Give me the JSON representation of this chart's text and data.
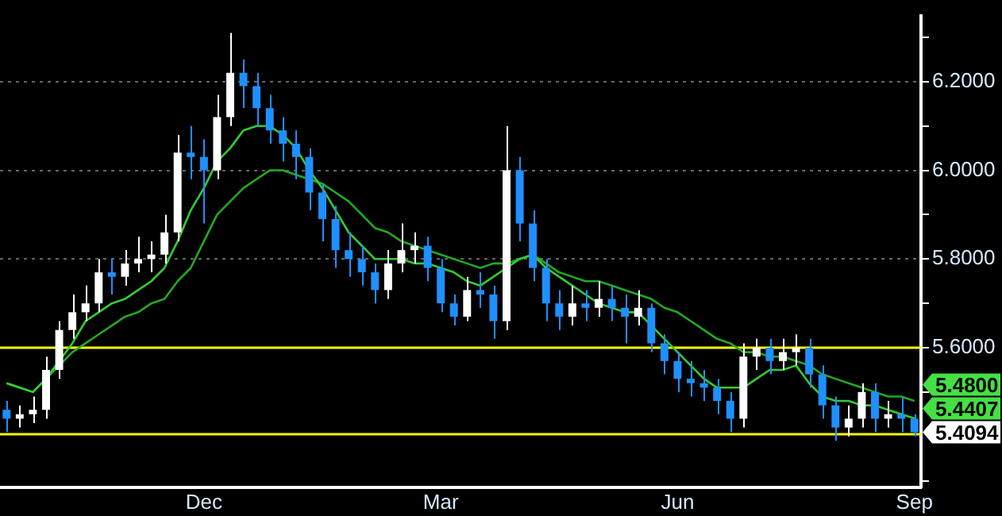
{
  "chart_data": {
    "type": "candlestick",
    "categories": [
      null,
      null,
      null,
      null,
      null,
      null,
      null,
      null,
      null,
      null,
      null,
      null,
      null,
      null,
      null,
      "Dec",
      null,
      null,
      null,
      null,
      null,
      null,
      null,
      null,
      null,
      null,
      null,
      null,
      null,
      null,
      null,
      null,
      null,
      "Mar",
      null,
      null,
      null,
      null,
      null,
      null,
      null,
      null,
      null,
      null,
      null,
      null,
      null,
      null,
      null,
      null,
      null,
      "Jun",
      null,
      null,
      null,
      null,
      null,
      null,
      null,
      null,
      null,
      null,
      null,
      null,
      null,
      null,
      null,
      null,
      null,
      "Sep"
    ],
    "ylim": [
      5.285,
      6.349
    ],
    "yticks": [
      {
        "value": 5.3,
        "label": null
      },
      {
        "value": 5.5,
        "label": null
      },
      {
        "value": 5.6,
        "label": "5.6000"
      },
      {
        "value": 5.7,
        "label": null
      },
      {
        "value": 5.8,
        "label": "5.8000"
      },
      {
        "value": 5.9,
        "label": null
      },
      {
        "value": 6.0,
        "label": "6.0000"
      },
      {
        "value": 6.1,
        "label": null
      },
      {
        "value": 6.2,
        "label": "6.2000"
      },
      {
        "value": 6.3,
        "label": null
      }
    ],
    "grid": "y",
    "ref_lines": [
      {
        "axis": "y",
        "value": 5.6,
        "color": "#ffff00"
      },
      {
        "axis": "y",
        "value": 5.405,
        "color": "#ffff00"
      }
    ],
    "series": [
      {
        "type": "candlestick",
        "ohlc": [
          [
            5.46,
            5.48,
            5.41,
            5.44
          ],
          [
            5.44,
            5.47,
            5.42,
            5.45
          ],
          [
            5.45,
            5.49,
            5.43,
            5.46
          ],
          [
            5.46,
            5.58,
            5.44,
            5.55
          ],
          [
            5.55,
            5.66,
            5.53,
            5.64
          ],
          [
            5.64,
            5.72,
            5.62,
            5.68
          ],
          [
            5.68,
            5.74,
            5.66,
            5.7
          ],
          [
            5.7,
            5.8,
            5.68,
            5.77
          ],
          [
            5.77,
            5.8,
            5.72,
            5.76
          ],
          [
            5.76,
            5.82,
            5.74,
            5.79
          ],
          [
            5.79,
            5.85,
            5.77,
            5.8
          ],
          [
            5.8,
            5.84,
            5.77,
            5.81
          ],
          [
            5.81,
            5.9,
            5.79,
            5.86
          ],
          [
            5.86,
            6.08,
            5.84,
            6.04
          ],
          [
            6.04,
            6.1,
            5.98,
            6.03
          ],
          [
            6.03,
            6.07,
            5.88,
            6.0
          ],
          [
            6.0,
            6.17,
            5.98,
            6.12
          ],
          [
            6.12,
            6.31,
            6.1,
            6.22
          ],
          [
            6.22,
            6.25,
            6.14,
            6.19
          ],
          [
            6.19,
            6.22,
            6.1,
            6.14
          ],
          [
            6.14,
            6.17,
            6.06,
            6.09
          ],
          [
            6.09,
            6.12,
            6.02,
            6.06
          ],
          [
            6.06,
            6.09,
            5.98,
            6.03
          ],
          [
            6.03,
            6.05,
            5.91,
            5.95
          ],
          [
            5.95,
            5.97,
            5.84,
            5.89
          ],
          [
            5.89,
            5.92,
            5.78,
            5.82
          ],
          [
            5.82,
            5.86,
            5.76,
            5.8
          ],
          [
            5.8,
            5.83,
            5.74,
            5.77
          ],
          [
            5.77,
            5.79,
            5.7,
            5.73
          ],
          [
            5.73,
            5.82,
            5.71,
            5.79
          ],
          [
            5.79,
            5.88,
            5.77,
            5.82
          ],
          [
            5.82,
            5.86,
            5.79,
            5.83
          ],
          [
            5.83,
            5.85,
            5.75,
            5.78
          ],
          [
            5.78,
            5.8,
            5.68,
            5.7
          ],
          [
            5.7,
            5.72,
            5.65,
            5.67
          ],
          [
            5.67,
            5.76,
            5.66,
            5.73
          ],
          [
            5.73,
            5.77,
            5.69,
            5.72
          ],
          [
            5.72,
            5.74,
            5.62,
            5.66
          ],
          [
            5.66,
            6.1,
            5.64,
            6.0
          ],
          [
            6.0,
            6.03,
            5.84,
            5.88
          ],
          [
            5.88,
            5.91,
            5.75,
            5.78
          ],
          [
            5.78,
            5.8,
            5.66,
            5.7
          ],
          [
            5.7,
            5.73,
            5.64,
            5.67
          ],
          [
            5.67,
            5.74,
            5.65,
            5.7
          ],
          [
            5.7,
            5.73,
            5.66,
            5.69
          ],
          [
            5.69,
            5.75,
            5.67,
            5.71
          ],
          [
            5.71,
            5.74,
            5.66,
            5.69
          ],
          [
            5.69,
            5.72,
            5.61,
            5.67
          ],
          [
            5.67,
            5.73,
            5.65,
            5.69
          ],
          [
            5.69,
            5.7,
            5.59,
            5.61
          ],
          [
            5.61,
            5.63,
            5.54,
            5.57
          ],
          [
            5.57,
            5.59,
            5.5,
            5.53
          ],
          [
            5.53,
            5.57,
            5.49,
            5.52
          ],
          [
            5.52,
            5.55,
            5.48,
            5.51
          ],
          [
            5.51,
            5.53,
            5.45,
            5.48
          ],
          [
            5.48,
            5.5,
            5.41,
            5.44
          ],
          [
            5.44,
            5.61,
            5.42,
            5.58
          ],
          [
            5.58,
            5.62,
            5.55,
            5.6
          ],
          [
            5.6,
            5.62,
            5.54,
            5.57
          ],
          [
            5.57,
            5.62,
            5.55,
            5.59
          ],
          [
            5.59,
            5.63,
            5.56,
            5.6
          ],
          [
            5.6,
            5.62,
            5.51,
            5.54
          ],
          [
            5.54,
            5.56,
            5.44,
            5.47
          ],
          [
            5.47,
            5.49,
            5.39,
            5.42
          ],
          [
            5.42,
            5.47,
            5.4,
            5.44
          ],
          [
            5.44,
            5.52,
            5.42,
            5.5
          ],
          [
            5.5,
            5.52,
            5.41,
            5.44
          ],
          [
            5.44,
            5.48,
            5.42,
            5.45
          ],
          [
            5.45,
            5.49,
            5.41,
            5.44
          ],
          [
            5.44,
            5.45,
            5.4,
            5.4094
          ]
        ],
        "colors": [
          "#1e90ff",
          "#ffffff",
          "#ffffff",
          "#ffffff",
          "#ffffff",
          "#ffffff",
          "#ffffff",
          "#ffffff",
          "#1e90ff",
          "#ffffff",
          "#ffffff",
          "#ffffff",
          "#ffffff",
          "#ffffff",
          "#1e90ff",
          "#1e90ff",
          "#ffffff",
          "#ffffff",
          "#1e90ff",
          "#1e90ff",
          "#1e90ff",
          "#1e90ff",
          "#1e90ff",
          "#1e90ff",
          "#1e90ff",
          "#1e90ff",
          "#1e90ff",
          "#1e90ff",
          "#1e90ff",
          "#ffffff",
          "#ffffff",
          "#ffffff",
          "#1e90ff",
          "#1e90ff",
          "#1e90ff",
          "#ffffff",
          "#1e90ff",
          "#1e90ff",
          "#ffffff",
          "#1e90ff",
          "#1e90ff",
          "#1e90ff",
          "#1e90ff",
          "#ffffff",
          "#1e90ff",
          "#ffffff",
          "#1e90ff",
          "#1e90ff",
          "#ffffff",
          "#1e90ff",
          "#1e90ff",
          "#1e90ff",
          "#1e90ff",
          "#1e90ff",
          "#1e90ff",
          "#1e90ff",
          "#ffffff",
          "#ffffff",
          "#1e90ff",
          "#ffffff",
          "#ffffff",
          "#1e90ff",
          "#1e90ff",
          "#1e90ff",
          "#ffffff",
          "#ffffff",
          "#1e90ff",
          "#ffffff",
          "#1e90ff",
          "#1e90ff"
        ],
        "value_labels": [
          null,
          null,
          null,
          null,
          null,
          null,
          null,
          null,
          null,
          null,
          null,
          null,
          null,
          null,
          null,
          null,
          null,
          null,
          null,
          null,
          null,
          null,
          null,
          null,
          null,
          null,
          null,
          null,
          null,
          null,
          null,
          null,
          null,
          null,
          null,
          null,
          null,
          null,
          null,
          null,
          null,
          null,
          null,
          null,
          null,
          null,
          null,
          null,
          null,
          null,
          null,
          null,
          null,
          null,
          null,
          null,
          null,
          null,
          null,
          null,
          null,
          null,
          null,
          null,
          null,
          null,
          null,
          null,
          null,
          "5.4094"
        ]
      },
      {
        "type": "line",
        "color": "#33cc33",
        "values": [
          5.52,
          5.51,
          5.5,
          5.53,
          5.57,
          5.61,
          5.66,
          5.68,
          5.7,
          5.71,
          5.73,
          5.75,
          5.78,
          5.84,
          5.91,
          5.96,
          6.02,
          6.05,
          6.09,
          6.1,
          6.1,
          6.08,
          6.05,
          6.0,
          5.96,
          5.91,
          5.86,
          5.83,
          5.8,
          5.8,
          5.8,
          5.79,
          5.79,
          5.78,
          5.77,
          5.75,
          5.74,
          5.76,
          5.78,
          5.8,
          5.81,
          5.78,
          5.76,
          5.74,
          5.72,
          5.7,
          5.69,
          5.68,
          5.68,
          5.65,
          5.62,
          5.59,
          5.56,
          5.53,
          5.51,
          5.51,
          5.51,
          5.53,
          5.55,
          5.55,
          5.56,
          5.52,
          5.49,
          5.48,
          5.48,
          5.47,
          5.47,
          5.46,
          5.45,
          5.4407
        ],
        "value_labels": [
          null,
          null,
          null,
          null,
          null,
          null,
          null,
          null,
          null,
          null,
          null,
          null,
          null,
          null,
          null,
          null,
          null,
          null,
          null,
          null,
          null,
          null,
          null,
          null,
          null,
          null,
          null,
          null,
          null,
          null,
          null,
          null,
          null,
          null,
          null,
          null,
          null,
          null,
          null,
          null,
          null,
          null,
          null,
          null,
          null,
          null,
          null,
          null,
          null,
          null,
          null,
          null,
          null,
          null,
          null,
          null,
          null,
          null,
          null,
          null,
          null,
          null,
          null,
          null,
          null,
          null,
          null,
          null,
          null,
          "5.4407"
        ]
      },
      {
        "type": "line",
        "color": "#22aa22",
        "values": [
          5.52,
          5.51,
          5.5,
          5.53,
          5.56,
          5.59,
          5.61,
          5.63,
          5.65,
          5.67,
          5.68,
          5.7,
          5.71,
          5.75,
          5.78,
          5.84,
          5.9,
          5.93,
          5.96,
          5.98,
          6.0,
          6.0,
          5.99,
          5.98,
          5.97,
          5.95,
          5.93,
          5.9,
          5.87,
          5.86,
          5.84,
          5.83,
          5.82,
          5.81,
          5.8,
          5.79,
          5.78,
          5.79,
          5.79,
          5.8,
          5.81,
          5.79,
          5.77,
          5.76,
          5.75,
          5.75,
          5.74,
          5.73,
          5.72,
          5.71,
          5.69,
          5.68,
          5.66,
          5.64,
          5.62,
          5.61,
          5.59,
          5.59,
          5.58,
          5.58,
          5.57,
          5.56,
          5.54,
          5.53,
          5.52,
          5.51,
          5.5,
          5.49,
          5.49,
          5.48
        ],
        "value_labels": [
          null,
          null,
          null,
          null,
          null,
          null,
          null,
          null,
          null,
          null,
          null,
          null,
          null,
          null,
          null,
          null,
          null,
          null,
          null,
          null,
          null,
          null,
          null,
          null,
          null,
          null,
          null,
          null,
          null,
          null,
          null,
          null,
          null,
          null,
          null,
          null,
          null,
          null,
          null,
          null,
          null,
          null,
          null,
          null,
          null,
          null,
          null,
          null,
          null,
          null,
          null,
          null,
          null,
          null,
          null,
          null,
          null,
          null,
          null,
          null,
          null,
          null,
          null,
          null,
          null,
          null,
          null,
          null,
          null,
          "5.4800"
        ]
      }
    ]
  }
}
